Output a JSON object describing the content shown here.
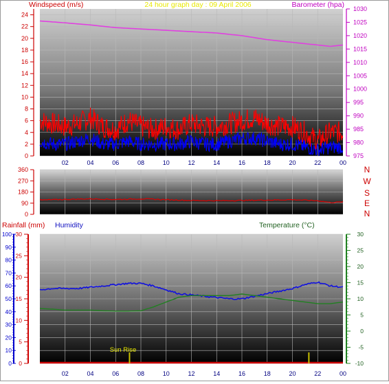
{
  "header": {
    "title": "24 hour graph day : 09 April 2006",
    "wind_label": "Windspeed (m/s)",
    "baro_label": "Barometer (hpa)"
  },
  "direction_labels": [
    "N",
    "W",
    "S",
    "E",
    "N"
  ],
  "bottom_labels": {
    "rain": "Rainfall (mm)",
    "humidity": "Humidity",
    "temperature": "Temperature (°C)",
    "sunrise": "Sun Rise"
  },
  "x_ticks": [
    "02",
    "04",
    "06",
    "08",
    "10",
    "12",
    "14",
    "16",
    "18",
    "20",
    "22",
    "00"
  ],
  "colors": {
    "wind_gust": "#ff0000",
    "wind_avg": "#0000ff",
    "barometer": "#e040e0",
    "direction": "#dd0000",
    "humidity": "#1010e0",
    "temperature": "#208020",
    "rain": "#cc0000",
    "sun_marker": "#c8c000",
    "title": "#e8e800"
  },
  "chart_data": [
    {
      "type": "line",
      "title": "24 hour graph day : 09 April 2006",
      "x": "hour of day",
      "y_left_label": "Windspeed (m/s)",
      "y_left_ticks": [
        0,
        2,
        4,
        6,
        8,
        10,
        12,
        14,
        16,
        18,
        20,
        22,
        24
      ],
      "y_left_lim": [
        0,
        25
      ],
      "y_right_label": "Barometer (hpa)",
      "y_right_ticks": [
        975,
        980,
        985,
        990,
        995,
        1000,
        1005,
        1010,
        1015,
        1020,
        1025,
        1030
      ],
      "y_right_lim": [
        975,
        1030
      ],
      "series": [
        {
          "name": "",
          "axis": "left",
          "x": [
            0,
            1,
            2,
            3,
            4,
            5,
            6,
            7,
            8,
            9,
            10,
            11,
            12,
            13,
            14,
            15,
            16,
            17,
            18,
            19,
            20,
            21,
            22,
            23,
            24
          ],
          "values": [
            6,
            5.5,
            5,
            5.5,
            6.5,
            5,
            4.5,
            6,
            5,
            4.5,
            5,
            4.5,
            5.5,
            5,
            5,
            5.5,
            6,
            6.5,
            5.5,
            5,
            5,
            4,
            2.5,
            4,
            4
          ]
        },
        {
          "name": "",
          "axis": "left",
          "x": [
            0,
            1,
            2,
            3,
            4,
            5,
            6,
            7,
            8,
            9,
            10,
            11,
            12,
            13,
            14,
            15,
            16,
            17,
            18,
            19,
            20,
            21,
            22,
            23,
            24
          ],
          "values": [
            2.5,
            2,
            2,
            2.5,
            3,
            2,
            2,
            2.5,
            2,
            2,
            2,
            2,
            2.5,
            2,
            2,
            2.5,
            3,
            3,
            2.5,
            2,
            2,
            1.5,
            1,
            1.5,
            1.5
          ]
        },
        {
          "name": "",
          "axis": "right",
          "x": [
            0,
            2,
            4,
            6,
            8,
            10,
            12,
            14,
            16,
            18,
            20,
            22,
            23,
            24
          ],
          "values": [
            1025.5,
            1024.8,
            1024,
            1023,
            1022.5,
            1022,
            1021.5,
            1021,
            1020,
            1018.5,
            1017.5,
            1016.5,
            1016,
            1016.5
          ]
        }
      ]
    },
    {
      "type": "line",
      "y_ticks": [
        0,
        90,
        180,
        270,
        360
      ],
      "y_lim": [
        0,
        360
      ],
      "series": [
        {
          "name": "",
          "x": [
            0,
            2,
            4,
            6,
            8,
            10,
            12,
            14,
            16,
            18,
            20,
            22,
            23,
            24
          ],
          "values": [
            115,
            120,
            125,
            120,
            125,
            118,
            112,
            110,
            112,
            115,
            118,
            110,
            95,
            100
          ]
        }
      ]
    },
    {
      "type": "line",
      "y_left_outer_label": "Humidity",
      "y_left_outer_ticks": [
        0,
        10,
        20,
        30,
        40,
        50,
        60,
        70,
        80,
        90,
        100
      ],
      "y_left_outer_lim": [
        0,
        100
      ],
      "y_left_inner_label": "Rainfall (mm)",
      "y_left_inner_ticks": [
        0,
        5,
        10,
        15,
        20,
        25,
        30
      ],
      "y_left_inner_lim": [
        0,
        30
      ],
      "y_right_label": "Temperature (°C)",
      "y_right_ticks": [
        -10,
        -5,
        0,
        5,
        10,
        15,
        20,
        25,
        30
      ],
      "y_right_lim": [
        -10,
        30
      ],
      "series": [
        {
          "name": "Humidity",
          "axis": "left_outer",
          "x": [
            0,
            1,
            2,
            3,
            4,
            5,
            6,
            7,
            8,
            9,
            10,
            11,
            12,
            13,
            14,
            15,
            16,
            17,
            18,
            19,
            20,
            21,
            22,
            23,
            24
          ],
          "values": [
            57,
            58,
            58,
            58,
            59,
            60,
            61,
            62,
            62,
            60,
            57,
            54,
            53,
            52,
            51,
            50,
            50,
            52,
            54,
            56,
            58,
            61,
            63,
            60,
            59
          ]
        },
        {
          "name": "Temperature (°C)",
          "axis": "right",
          "x": [
            0,
            1,
            2,
            3,
            4,
            5,
            6,
            7,
            8,
            9,
            10,
            11,
            12,
            13,
            14,
            15,
            16,
            17,
            18,
            19,
            20,
            21,
            22,
            23,
            24
          ],
          "values": [
            7,
            6.8,
            6.5,
            6.5,
            6.5,
            6.3,
            6.2,
            6.2,
            6.3,
            7.5,
            9,
            10.5,
            11,
            11,
            11,
            11,
            11.5,
            11,
            10.5,
            10,
            9.5,
            9,
            8.5,
            8.5,
            9
          ]
        },
        {
          "name": "Rainfall (mm)",
          "axis": "left_inner",
          "x": [
            0,
            24
          ],
          "values": [
            0,
            0
          ]
        }
      ],
      "markers": [
        {
          "label": "Sun Rise",
          "x": 7.1
        },
        {
          "label": "",
          "x": 21.3
        }
      ]
    }
  ]
}
